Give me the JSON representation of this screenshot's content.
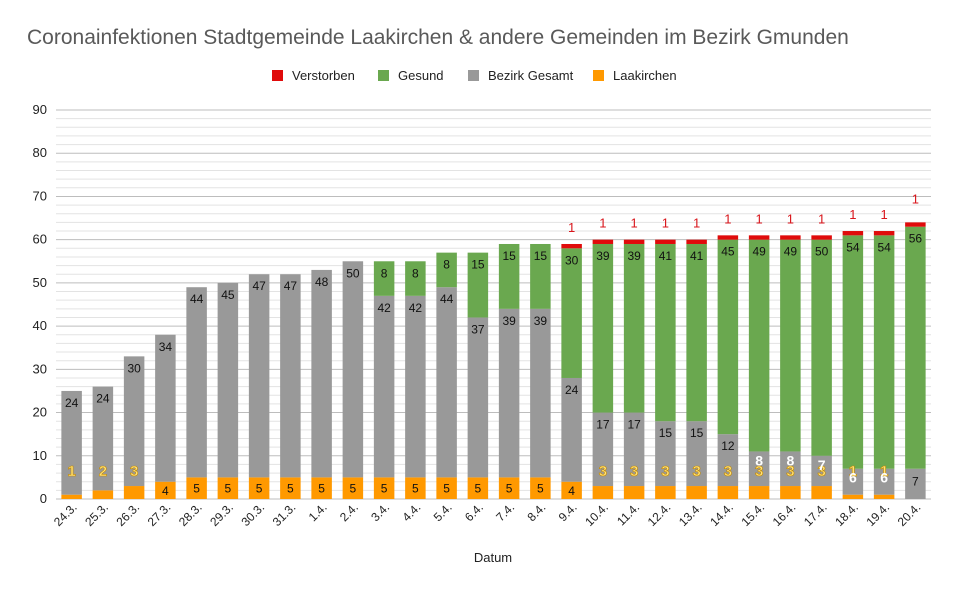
{
  "chart_data": {
    "type": "bar",
    "stacked": true,
    "title": "Coronainfektionen Stadtgemeinde Laakirchen & andere Gemeinden im Bezirk Gmunden",
    "xlabel": "Datum",
    "ylabel": "",
    "ylim": [
      0,
      90
    ],
    "yticks": [
      0,
      10,
      20,
      30,
      40,
      50,
      60,
      70,
      80,
      90
    ],
    "grid": true,
    "legend_position": "top",
    "categories": [
      "24.3.",
      "25.3.",
      "26.3.",
      "27.3.",
      "28.3.",
      "29.3.",
      "30.3.",
      "31.3.",
      "1.4.",
      "2.4.",
      "3.4.",
      "4.4.",
      "5.4.",
      "6.4.",
      "7.4.",
      "8.4.",
      "9.4.",
      "10.4.",
      "11.4.",
      "12.4.",
      "13.4.",
      "14.4.",
      "15.4.",
      "16.4.",
      "17.4.",
      "18.4.",
      "19.4.",
      "20.4."
    ],
    "series": [
      {
        "name": "Verstorben",
        "color": "#e00b0b",
        "values": [
          0,
          0,
          0,
          0,
          0,
          0,
          0,
          0,
          0,
          0,
          0,
          0,
          0,
          0,
          0,
          0,
          1,
          1,
          1,
          1,
          1,
          1,
          1,
          1,
          1,
          1,
          1,
          1
        ]
      },
      {
        "name": "Gesund",
        "color": "#6aa84f",
        "values": [
          0,
          0,
          0,
          0,
          0,
          0,
          0,
          0,
          0,
          0,
          8,
          8,
          8,
          15,
          15,
          15,
          30,
          39,
          39,
          41,
          41,
          45,
          49,
          49,
          50,
          54,
          54,
          56
        ]
      },
      {
        "name": "Bezirk Gesamt",
        "color": "#999999",
        "values": [
          24,
          24,
          30,
          34,
          44,
          45,
          47,
          47,
          48,
          50,
          42,
          42,
          44,
          37,
          39,
          39,
          24,
          17,
          17,
          15,
          15,
          12,
          8,
          8,
          7,
          6,
          6,
          7
        ]
      },
      {
        "name": "Laakirchen",
        "color": "#ff9900",
        "values": [
          1,
          2,
          3,
          4,
          5,
          5,
          5,
          5,
          5,
          5,
          5,
          5,
          5,
          5,
          5,
          5,
          4,
          3,
          3,
          3,
          3,
          3,
          3,
          3,
          3,
          1,
          1,
          0
        ]
      }
    ]
  }
}
